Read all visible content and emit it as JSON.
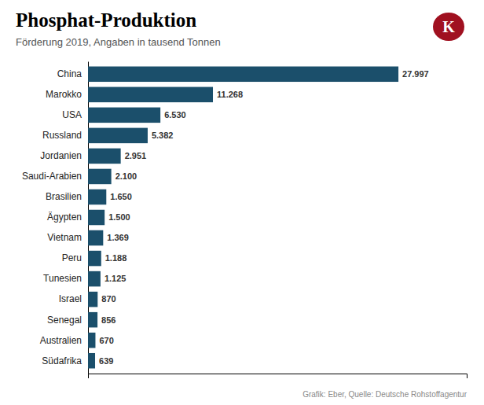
{
  "chart_data": {
    "type": "bar",
    "orientation": "horizontal",
    "title": "Phosphat-Produktion",
    "subtitle": "Förderung 2019, Angaben in tausend Tonnen",
    "source": "Grafik: Eber, Quelle: Deutsche Rohstoffagentur",
    "annotations": [
      "K"
    ],
    "categories": [
      "China",
      "Marokko",
      "USA",
      "Russland",
      "Jordanien",
      "Saudi-Arabien",
      "Brasilien",
      "Ägypten",
      "Vietnam",
      "Peru",
      "Tunesien",
      "Israel",
      "Senegal",
      "Australien",
      "Südafrika"
    ],
    "values": [
      27997,
      11268,
      6530,
      5382,
      2951,
      2100,
      1650,
      1500,
      1369,
      1188,
      1125,
      870,
      856,
      670,
      639
    ],
    "value_labels": [
      "27.997",
      "11.268",
      "6.530",
      "5.382",
      "2.951",
      "2.100",
      "1.650",
      "1.500",
      "1.369",
      "1.188",
      "1.125",
      "870",
      "856",
      "670",
      "639"
    ],
    "data_labels": true,
    "color": "#1b4f6b",
    "xlim": [
      0,
      34156.34
    ],
    "tick_labels": "y",
    "grid": false
  }
}
